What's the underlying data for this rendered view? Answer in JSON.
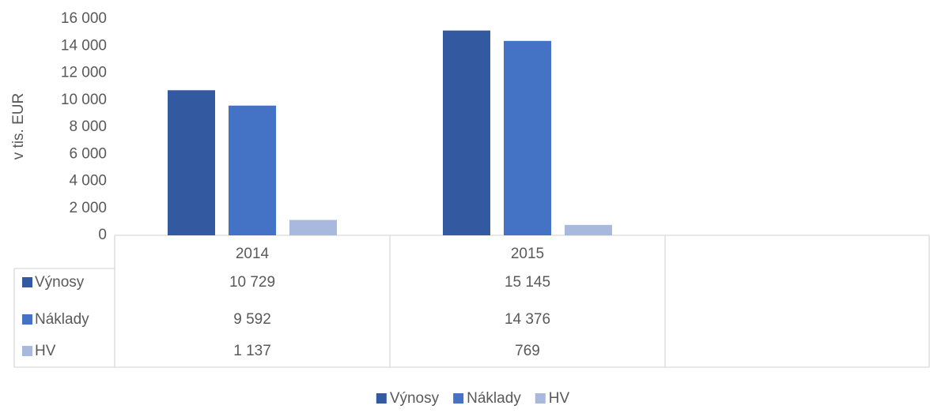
{
  "chart_data": {
    "type": "bar",
    "y_label": "v tis. EUR",
    "categories": [
      "2014",
      "2015",
      null
    ],
    "series": [
      {
        "name": "Výnosy",
        "color": "#335aa1",
        "values": [
          10729,
          15145,
          null
        ],
        "value_labels": [
          "10 729",
          "15 145",
          null
        ]
      },
      {
        "name": "Náklady",
        "color": "#4472c4",
        "values": [
          9592,
          14376,
          null
        ],
        "value_labels": [
          "9 592",
          "14 376",
          null
        ]
      },
      {
        "name": "HV",
        "color": "#a9b8dd",
        "values": [
          1137,
          769,
          null
        ],
        "value_labels": [
          "1 137",
          "769",
          null
        ]
      }
    ],
    "ylim": [
      0,
      16000
    ],
    "yticks": [
      0,
      {
        "value": 2000,
        "label": "2 000"
      },
      {
        "value": 4000,
        "label": "4 000"
      },
      {
        "value": 6000,
        "label": "6 000"
      },
      {
        "value": 8000,
        "label": "8 000"
      },
      {
        "value": 10000,
        "label": "10 000"
      },
      {
        "value": 12000,
        "label": "12 000"
      },
      {
        "value": 14000,
        "label": "14 000"
      },
      {
        "value": 16000,
        "label": "16 000"
      }
    ],
    "grid": false,
    "data_table": true,
    "legend": "bottom"
  }
}
